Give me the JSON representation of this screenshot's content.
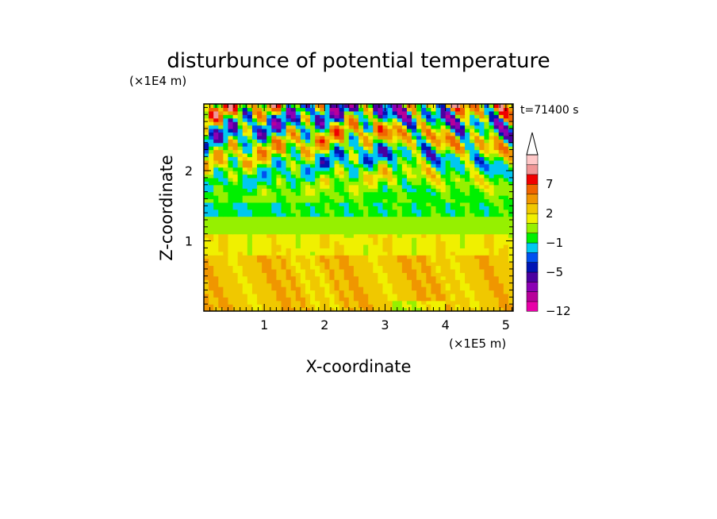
{
  "chart_data": {
    "type": "heatmap",
    "title": "disturbunce of potential temperature",
    "xlabel": "X-coordinate",
    "ylabel": "Z-coordinate",
    "x_unit": "(×1E5 m)",
    "y_unit": "(×1E4 m)",
    "time_label": "t=71400 s",
    "xlim": [
      0,
      5.12
    ],
    "ylim": [
      0,
      2.95
    ],
    "x_ticks": [
      1,
      2,
      3,
      4,
      5
    ],
    "y_ticks": [
      1,
      2
    ],
    "colorbar": {
      "levels": [
        -12,
        -11,
        -9,
        -7,
        -5,
        -4,
        -3,
        -1,
        0,
        1,
        2,
        3,
        5,
        7,
        9,
        11
      ],
      "colors": [
        "#e800a8",
        "#b8009a",
        "#8c00b4",
        "#4b00a0",
        "#0014b4",
        "#0050f0",
        "#00c8f0",
        "#00f000",
        "#96f000",
        "#f0f000",
        "#f0c800",
        "#f09600",
        "#f06400",
        "#f00000",
        "#f09696",
        "#ffc8c8"
      ],
      "tick_labels": [
        "-12",
        "-5",
        "-1",
        "2",
        "7"
      ],
      "tick_values": [
        -12,
        -5,
        -1,
        2,
        7
      ],
      "extend": "max"
    },
    "field_description_bands": [
      {
        "z_range": [
          0.0,
          0.8
        ],
        "typical_value": 2.5
      },
      {
        "z_range": [
          0.8,
          1.1
        ],
        "typical_value": 1.5
      },
      {
        "z_range": [
          1.1,
          1.35
        ],
        "typical_value": 0.5
      },
      {
        "z_range": [
          1.35,
          1.55
        ],
        "typical_value": -0.5
      },
      {
        "z_range": [
          1.55,
          2.95
        ],
        "typical_value": "wave pattern, -9 to 9"
      }
    ]
  }
}
